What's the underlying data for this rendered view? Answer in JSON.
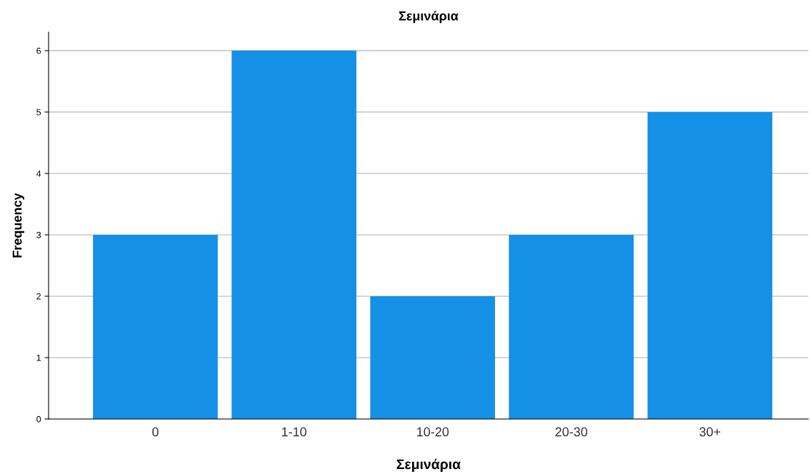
{
  "chart_data": {
    "type": "bar",
    "title": "Σεμινάρια",
    "xlabel": "Σεμινάρια",
    "ylabel": "Frequency",
    "categories": [
      "0",
      "1-10",
      "10-20",
      "20-30",
      "30+"
    ],
    "values": [
      3,
      6,
      2,
      3,
      5
    ],
    "color": "#1490e6",
    "ylim": [
      0,
      6.3
    ],
    "yticks": [
      0,
      1,
      2,
      3,
      4,
      5,
      6
    ],
    "grid": "y"
  }
}
